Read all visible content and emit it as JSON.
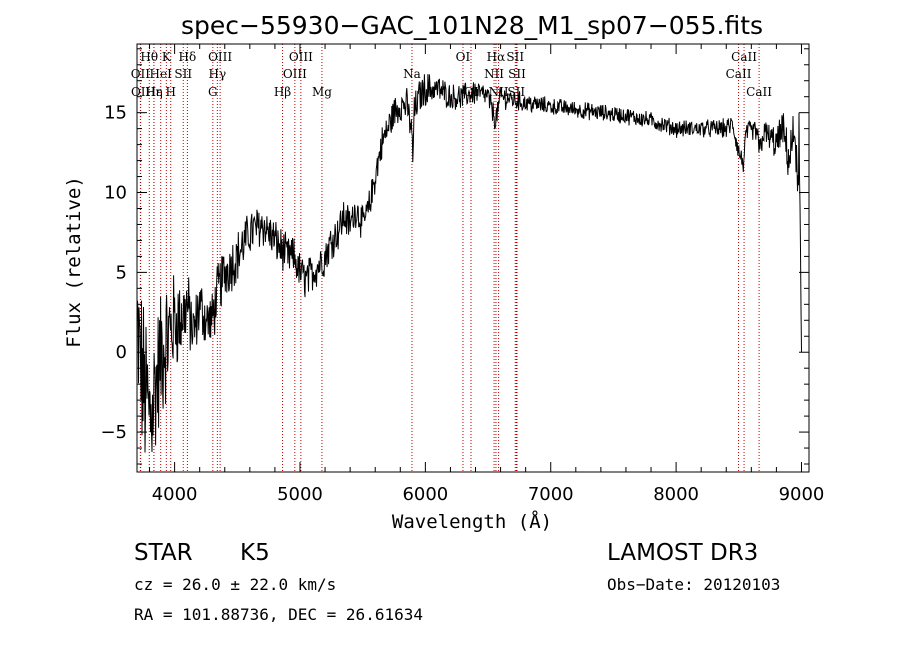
{
  "chart_data": {
    "type": "line",
    "title": "spec−55930−GAC_101N28_M1_sp07−055.fits",
    "xlabel": "Wavelength (Å)",
    "ylabel": "Flux (relative)",
    "xlim": [
      3700,
      9060
    ],
    "ylim": [
      -7.5,
      19.3
    ],
    "x_ticks": [
      4000,
      5000,
      6000,
      7000,
      8000,
      9000
    ],
    "y_ticks": [
      -5,
      0,
      5,
      10,
      15
    ],
    "series": [
      {
        "name": "flux",
        "anchors_x": [
          3700,
          3750,
          3800,
          3850,
          3900,
          3950,
          4000,
          4050,
          4100,
          4150,
          4200,
          4250,
          4300,
          4350,
          4400,
          4500,
          4600,
          4700,
          4750,
          4800,
          4850,
          4900,
          4950,
          5000,
          5050,
          5100,
          5150,
          5200,
          5250,
          5300,
          5350,
          5400,
          5450,
          5500,
          5550,
          5600,
          5650,
          5700,
          5750,
          5800,
          5850,
          5890,
          5900,
          5910,
          5950,
          6000,
          6100,
          6200,
          6300,
          6400,
          6500,
          6560,
          6600,
          6700,
          6800,
          7000,
          7200,
          7400,
          7600,
          7800,
          8000,
          8200,
          8400,
          8450,
          8500,
          8540,
          8560,
          8600,
          8650,
          8660,
          8700,
          8800,
          8850,
          8900,
          8950,
          8970,
          8980,
          9000
        ],
        "anchors_y": [
          1,
          -2,
          -4,
          -2,
          0,
          1,
          2,
          2,
          3,
          1,
          3,
          2,
          2,
          4,
          5,
          6,
          7.5,
          8,
          7.5,
          7,
          6.5,
          6,
          6,
          5,
          4.5,
          5,
          5.5,
          6,
          7,
          7.5,
          8.5,
          8,
          9,
          8,
          9,
          11,
          13,
          14,
          15,
          15.5,
          15.5,
          14,
          12,
          15,
          16,
          16.5,
          16.5,
          16,
          16,
          16.3,
          16,
          14.5,
          16,
          15.8,
          15.6,
          15.4,
          15.2,
          15,
          14.8,
          14.5,
          14,
          14,
          14,
          14.3,
          12.5,
          11.8,
          13.8,
          13.8,
          13.8,
          12.5,
          13.8,
          13,
          14,
          12,
          14,
          9,
          14,
          0
        ],
        "noise_amplitude": [
          6,
          6,
          6,
          5,
          5,
          4,
          3.5,
          3,
          2.5,
          2.5,
          2,
          2,
          2,
          2,
          2,
          1.8,
          1.6,
          1.5,
          1.5,
          1.5,
          1.5,
          1.4,
          1.4,
          1.4,
          1.4,
          1.4,
          1.4,
          1.4,
          1.3,
          1.3,
          1.3,
          1.2,
          1.2,
          1.2,
          1.2,
          1.2,
          1.2,
          1.2,
          1.2,
          1.2,
          1.2,
          1.2,
          1.2,
          1.2,
          1.2,
          1.2,
          1.0,
          0.9,
          0.9,
          0.9,
          0.8,
          0.8,
          0.8,
          0.7,
          0.7,
          0.6,
          0.6,
          0.6,
          0.6,
          0.6,
          0.6,
          0.6,
          0.7,
          0.7,
          0.8,
          0.8,
          0.8,
          0.8,
          0.9,
          0.9,
          0.9,
          1.2,
          1.3,
          1.5,
          1.8,
          2.0,
          2.0,
          2.0
        ]
      }
    ],
    "spectral_lines": [
      {
        "label": "Hθ",
        "x": 3798,
        "row": 0
      },
      {
        "label": "Hε",
        "x": 3835,
        "row": 2
      },
      {
        "label": "OII",
        "x": 3727,
        "row": 1
      },
      {
        "label": "OII",
        "x": 3729,
        "row": 2
      },
      {
        "label": "HeI",
        "x": 3889,
        "row": 1
      },
      {
        "label": "Hη",
        "x": 3835,
        "row": 2
      },
      {
        "label": "K",
        "x": 3934,
        "row": 0
      },
      {
        "label": "H",
        "x": 3969,
        "row": 2
      },
      {
        "label": "SII",
        "x": 4069,
        "row": 1
      },
      {
        "label": "Hδ",
        "x": 4102,
        "row": 0
      },
      {
        "label": "OIII",
        "x": 4363,
        "row": 0
      },
      {
        "label": "Hγ",
        "x": 4341,
        "row": 1
      },
      {
        "label": "G",
        "x": 4305,
        "row": 2
      },
      {
        "label": "Hβ",
        "x": 4861,
        "row": 2
      },
      {
        "label": "OIII",
        "x": 5007,
        "row": 0
      },
      {
        "label": "OIII",
        "x": 4959,
        "row": 1
      },
      {
        "label": "Mg",
        "x": 5175,
        "row": 2
      },
      {
        "label": "Na",
        "x": 5893,
        "row": 1
      },
      {
        "label": "OI",
        "x": 6300,
        "row": 0
      },
      {
        "label": "OI",
        "x": 6364,
        "row": 2
      },
      {
        "label": "Hα",
        "x": 6563,
        "row": 0
      },
      {
        "label": "NII",
        "x": 6548,
        "row": 1
      },
      {
        "label": "NII",
        "x": 6584,
        "row": 2
      },
      {
        "label": "SII",
        "x": 6717,
        "row": 0
      },
      {
        "label": "SII",
        "x": 6731,
        "row": 1
      },
      {
        "label": "SII",
        "x": 6725,
        "row": 2
      },
      {
        "label": "CaII",
        "x": 8542,
        "row": 0
      },
      {
        "label": "CaII",
        "x": 8498,
        "row": 1
      },
      {
        "label": "CaII",
        "x": 8662,
        "row": 2
      }
    ]
  },
  "info": {
    "class": "STAR",
    "subclass": "K5",
    "survey": "LAMOST DR3",
    "cz": "cz = 26.0 ± 22.0 km/s",
    "obs_date": "Obs−Date: 20120103",
    "coords": "RA = 101.88736, DEC =  26.61634"
  },
  "colors": {
    "line": "#000000",
    "marker": "#c00000"
  }
}
